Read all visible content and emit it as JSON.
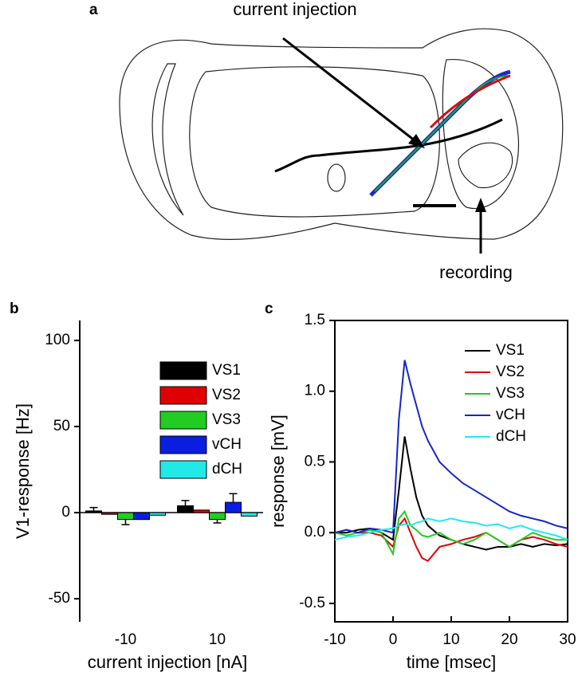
{
  "diagram": {
    "panel_label": "a",
    "annotations": [
      "current injection",
      "recording"
    ]
  },
  "chart_data": [
    {
      "type": "bar",
      "panel_label": "b",
      "x_label": "current injection [nA]",
      "y_label": "V1-response [Hz]",
      "categories": [
        "-10",
        "10"
      ],
      "series": [
        {
          "name": "VS1",
          "color": "#000000",
          "values": [
            1,
            4
          ],
          "errors": [
            2,
            3
          ]
        },
        {
          "name": "VS2",
          "color": "#e00000",
          "values": [
            -1,
            1.5
          ],
          "errors": [
            null,
            null
          ]
        },
        {
          "name": "VS3",
          "color": "#22cc22",
          "values": [
            -4,
            -4
          ],
          "errors": [
            3,
            2
          ]
        },
        {
          "name": "vCH",
          "color": "#0a1ee0",
          "values": [
            -4,
            6
          ],
          "errors": [
            null,
            5
          ]
        },
        {
          "name": "dCH",
          "color": "#22e8e8",
          "values": [
            -1.5,
            -2
          ],
          "errors": [
            null,
            null
          ]
        }
      ],
      "ylim": [
        -63.4,
        111.6
      ],
      "yticks": [
        -50,
        0,
        50,
        100
      ]
    },
    {
      "type": "line",
      "panel_label": "c",
      "x_label": "time [msec]",
      "y_label": "response [mV]",
      "x": [
        -10,
        -8,
        -6,
        -4,
        -2,
        0,
        1,
        2,
        3,
        4,
        5,
        6,
        8,
        10,
        12,
        14,
        16,
        18,
        20,
        22,
        24,
        26,
        28,
        30
      ],
      "series": [
        {
          "name": "VS1",
          "color": "#000000",
          "values": [
            0,
            0,
            0.02,
            0.03,
            0,
            -0.05,
            0.3,
            0.68,
            0.45,
            0.25,
            0.12,
            0.05,
            -0.02,
            -0.05,
            -0.08,
            -0.1,
            -0.12,
            -0.1,
            -0.1,
            -0.08,
            -0.1,
            -0.08,
            -0.09,
            -0.08
          ]
        },
        {
          "name": "VS2",
          "color": "#e00000",
          "values": [
            0,
            0.02,
            0,
            0,
            -0.02,
            -0.1,
            0.05,
            0.1,
            0,
            -0.1,
            -0.18,
            -0.2,
            -0.1,
            -0.08,
            -0.05,
            -0.03,
            0,
            -0.05,
            -0.1,
            -0.05,
            -0.03,
            -0.05,
            -0.08,
            -0.1
          ]
        },
        {
          "name": "VS3",
          "color": "#22cc22",
          "values": [
            0,
            -0.02,
            0,
            0.02,
            0,
            -0.15,
            0.1,
            0.15,
            0.05,
            0.02,
            -0.02,
            -0.03,
            0,
            -0.05,
            -0.08,
            -0.05,
            0,
            -0.05,
            -0.1,
            -0.05,
            0,
            -0.03,
            -0.05,
            -0.05
          ]
        },
        {
          "name": "vCH",
          "color": "#1426c8",
          "values": [
            0,
            0.02,
            0,
            0.03,
            0.02,
            0,
            0.8,
            1.22,
            1.05,
            0.9,
            0.75,
            0.65,
            0.5,
            0.42,
            0.35,
            0.3,
            0.25,
            0.2,
            0.15,
            0.12,
            0.1,
            0.08,
            0.05,
            0.03
          ]
        },
        {
          "name": "dCH",
          "color": "#22e8f0",
          "values": [
            -0.05,
            -0.03,
            -0.02,
            0,
            0.02,
            0.03,
            0.05,
            0.06,
            0.05,
            0.07,
            0.08,
            0.1,
            0.08,
            0.1,
            0.08,
            0.07,
            0.05,
            0.06,
            0.03,
            0.05,
            0.02,
            0,
            -0.02,
            -0.05
          ]
        }
      ],
      "xlim": [
        -10,
        30
      ],
      "xticks": [
        -10,
        0,
        10,
        20,
        30
      ],
      "ylim": [
        -0.63,
        1.5
      ],
      "yticks": [
        -0.5,
        {
          "value": 0,
          "label": "0.0"
        },
        0.5,
        {
          "value": 1,
          "label": "1.0"
        },
        1.5
      ]
    }
  ]
}
